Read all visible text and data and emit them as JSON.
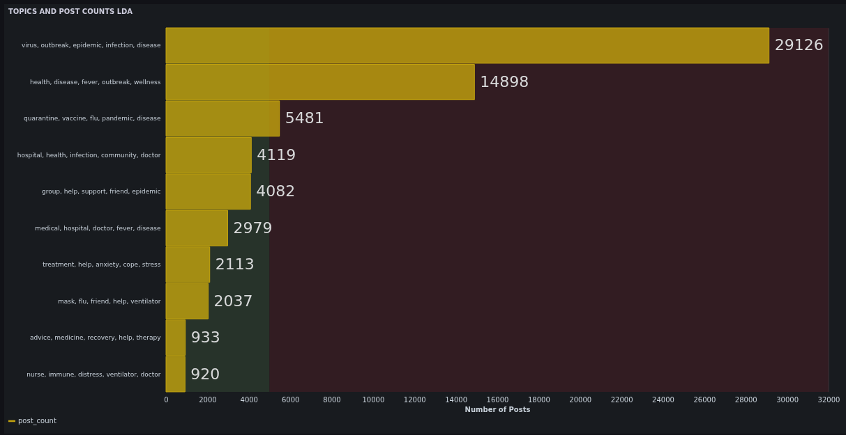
{
  "chart_data": {
    "type": "bar",
    "orientation": "horizontal",
    "title": "TOPICS AND POST COUNTS LDA",
    "xlabel": "Number of Posts",
    "categories": [
      "virus, outbreak, epidemic, infection, disease",
      "health, disease, fever, outbreak, wellness",
      "quarantine, vaccine, flu, pandemic, disease",
      "hospital, health, infection, community, doctor",
      "group, help, support, friend, epidemic",
      "medical, hospital, doctor, fever, disease",
      "treatment, help, anxiety, cope, stress",
      "mask, flu, friend, help, ventilator",
      "advice, medicine, recovery, help, therapy",
      "nurse, immune, distress, ventilator, doctor"
    ],
    "series": [
      {
        "name": "post_count",
        "color": "#c4a40e",
        "values": [
          29126,
          14898,
          5481,
          4119,
          4082,
          2979,
          2113,
          2037,
          933,
          920
        ]
      }
    ],
    "xlim": [
      0,
      32000
    ],
    "xticks": [
      0,
      2000,
      4000,
      6000,
      8000,
      10000,
      12000,
      14000,
      16000,
      18000,
      20000,
      22000,
      24000,
      26000,
      28000,
      30000,
      32000
    ],
    "bands": [
      {
        "axis": "x",
        "from": 0,
        "to": 5000,
        "color": "#27332a"
      },
      {
        "axis": "x",
        "from": 5000,
        "to": 32000,
        "color": "#321c22"
      }
    ],
    "grid": "x",
    "legend": "bottom left",
    "data_labels": true
  }
}
